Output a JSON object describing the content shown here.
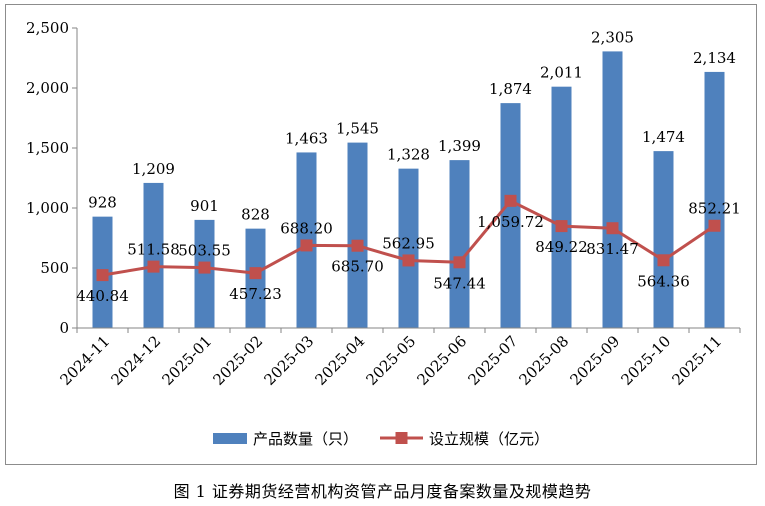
{
  "caption": "图 1   证券期货经营机构资管产品月度备案数量及规模趋势",
  "chart_data": {
    "type": "bar",
    "categories": [
      "2024-11",
      "2024-12",
      "2025-01",
      "2025-02",
      "2025-03",
      "2025-04",
      "2025-05",
      "2025-06",
      "2025-07",
      "2025-08",
      "2025-09",
      "2025-10",
      "2025-11"
    ],
    "ylim": [
      0,
      2500
    ],
    "yticks": [
      0,
      500,
      1000,
      1500,
      2000,
      2500
    ],
    "ytick_labels": [
      "0",
      "500",
      "1,000",
      "1,500",
      "2,000",
      "2,500"
    ],
    "grid": false,
    "legend_position": "bottom",
    "series": [
      {
        "name": "产品数量（只）",
        "type": "bar",
        "color": "#4f81bd",
        "values": [
          928,
          1209,
          901,
          828,
          1463,
          1545,
          1328,
          1399,
          1874,
          2011,
          2305,
          1474,
          2134
        ],
        "labels": [
          "928",
          "1,209",
          "901",
          "828",
          "1,463",
          "1,545",
          "1,328",
          "1,399",
          "1,874",
          "2,011",
          "2,305",
          "1,474",
          "2,134"
        ]
      },
      {
        "name": "设立规模（亿元）",
        "type": "line",
        "color": "#c0504d",
        "marker": "square",
        "values": [
          440.84,
          511.58,
          503.55,
          457.23,
          688.2,
          685.7,
          562.95,
          547.44,
          1059.72,
          849.22,
          831.47,
          564.36,
          852.21
        ],
        "labels": [
          "440.84",
          "511.58",
          "503.55",
          "457.23",
          "688.20",
          "685.70",
          "562.95",
          "547.44",
          "1,059.72",
          "849.22",
          "831.47",
          "564.36",
          "852.21"
        ]
      }
    ]
  }
}
